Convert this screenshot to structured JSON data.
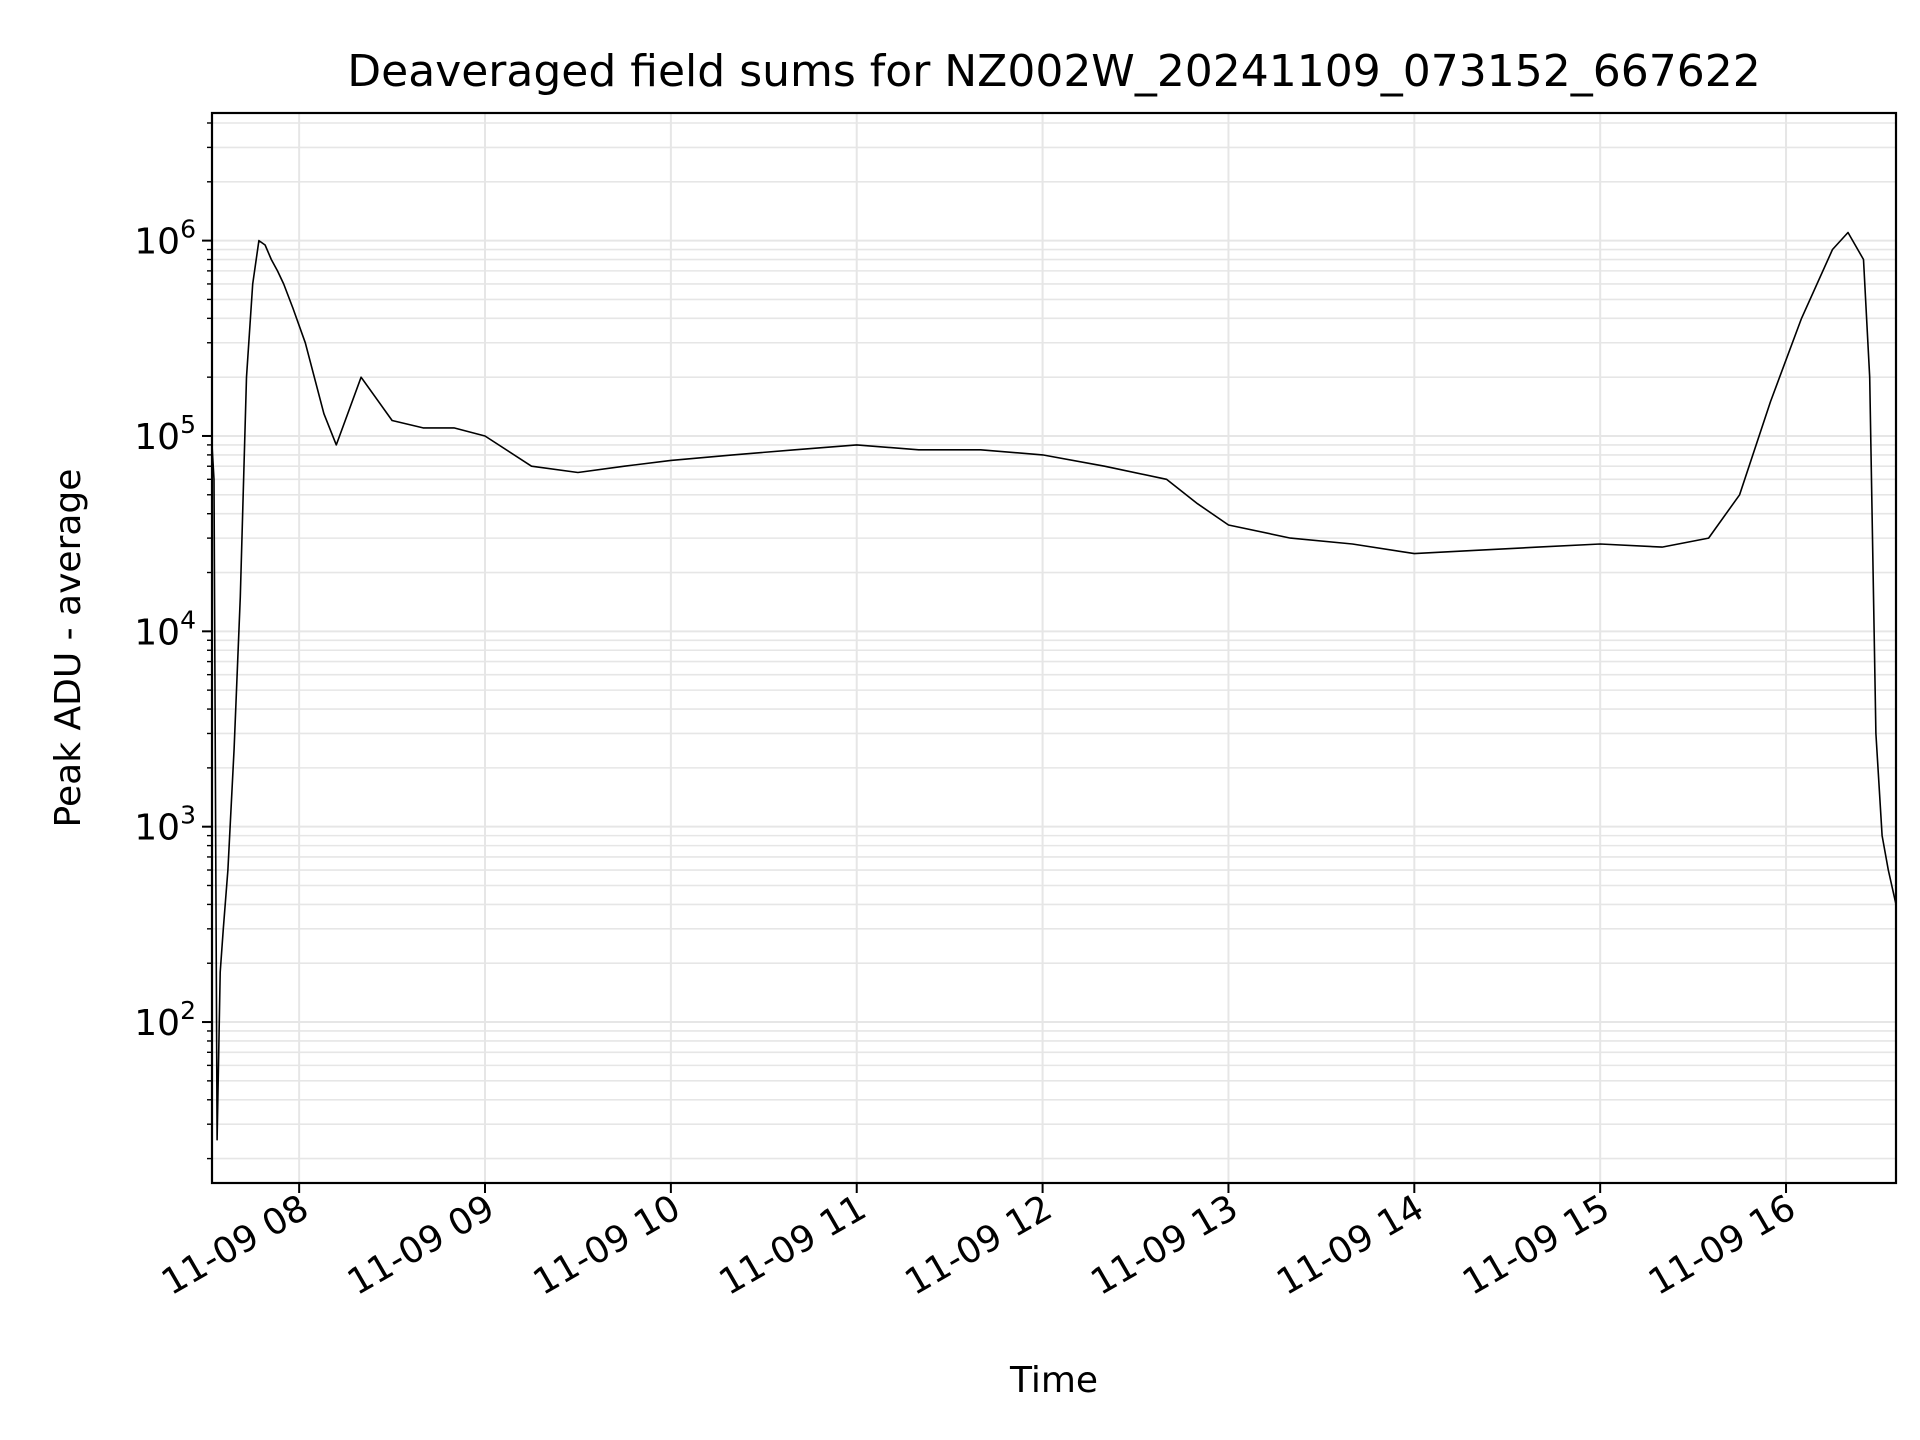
{
  "chart_data": {
    "type": "line",
    "title": "Deaveraged field sums for NZ002W_20241109_073152_667622",
    "xlabel": "Time",
    "ylabel": "Peak ADU - average",
    "yscale": "log",
    "ylim": [
      15,
      4500000
    ],
    "xlim": [
      "2024-11-09 07:31:52",
      "2024-11-09 16:35:30"
    ],
    "x_ticks": [
      {
        "label": "11-09 08",
        "time": "2024-11-09 08:00"
      },
      {
        "label": "11-09 09",
        "time": "2024-11-09 09:00"
      },
      {
        "label": "11-09 10",
        "time": "2024-11-09 10:00"
      },
      {
        "label": "11-09 11",
        "time": "2024-11-09 11:00"
      },
      {
        "label": "11-09 12",
        "time": "2024-11-09 12:00"
      },
      {
        "label": "11-09 13",
        "time": "2024-11-09 13:00"
      },
      {
        "label": "11-09 14",
        "time": "2024-11-09 14:00"
      },
      {
        "label": "11-09 15",
        "time": "2024-11-09 15:00"
      },
      {
        "label": "11-09 16",
        "time": "2024-11-09 16:00"
      }
    ],
    "y_ticks": [
      {
        "base": "10",
        "exp": "2",
        "value": 100
      },
      {
        "base": "10",
        "exp": "3",
        "value": 1000
      },
      {
        "base": "10",
        "exp": "4",
        "value": 10000
      },
      {
        "base": "10",
        "exp": "5",
        "value": 100000
      },
      {
        "base": "10",
        "exp": "6",
        "value": 1000000
      }
    ],
    "grid": true,
    "line_color": "#000000",
    "grid_color": "#e6e6e6",
    "series": [
      {
        "x": [
          "2024-11-09 07:31:52",
          "2024-11-09 07:32:30",
          "2024-11-09 07:33:30",
          "2024-11-09 07:34:30",
          "2024-11-09 07:35:30",
          "2024-11-09 07:37:00",
          "2024-11-09 07:39:00",
          "2024-11-09 07:41:00",
          "2024-11-09 07:43:00",
          "2024-11-09 07:45:00",
          "2024-11-09 07:47:00",
          "2024-11-09 07:49:00",
          "2024-11-09 07:51:00",
          "2024-11-09 07:53:00",
          "2024-11-09 07:55:00",
          "2024-11-09 07:58:00",
          "2024-11-09 08:02:00",
          "2024-11-09 08:08:00",
          "2024-11-09 08:12:00",
          "2024-11-09 08:20:00",
          "2024-11-09 08:30:00",
          "2024-11-09 08:40:00",
          "2024-11-09 08:50:00",
          "2024-11-09 09:00:00",
          "2024-11-09 09:15:00",
          "2024-11-09 09:30:00",
          "2024-11-09 09:45:00",
          "2024-11-09 10:00:00",
          "2024-11-09 10:20:00",
          "2024-11-09 10:40:00",
          "2024-11-09 11:00:00",
          "2024-11-09 11:20:00",
          "2024-11-09 11:40:00",
          "2024-11-09 12:00:00",
          "2024-11-09 12:20:00",
          "2024-11-09 12:40:00",
          "2024-11-09 12:50:00",
          "2024-11-09 13:00:00",
          "2024-11-09 13:20:00",
          "2024-11-09 13:40:00",
          "2024-11-09 14:00:00",
          "2024-11-09 14:20:00",
          "2024-11-09 14:40:00",
          "2024-11-09 15:00:00",
          "2024-11-09 15:20:00",
          "2024-11-09 15:35:00",
          "2024-11-09 15:45:00",
          "2024-11-09 15:55:00",
          "2024-11-09 16:05:00",
          "2024-11-09 16:15:00",
          "2024-11-09 16:20:00",
          "2024-11-09 16:25:00",
          "2024-11-09 16:27:00",
          "2024-11-09 16:29:00",
          "2024-11-09 16:31:00",
          "2024-11-09 16:33:00",
          "2024-11-09 16:35:30"
        ],
        "y": [
          90000,
          60000,
          25,
          180,
          300,
          600,
          2500,
          15000,
          200000,
          600000,
          1000000,
          950000,
          800000,
          700000,
          600000,
          450000,
          300000,
          130000,
          90000,
          200000,
          120000,
          110000,
          110000,
          100000,
          70000,
          65000,
          70000,
          75000,
          80000,
          85000,
          90000,
          85000,
          85000,
          80000,
          70000,
          60000,
          45000,
          35000,
          30000,
          28000,
          25000,
          26000,
          27000,
          28000,
          27000,
          30000,
          50000,
          150000,
          400000,
          900000,
          1100000,
          800000,
          200000,
          3000,
          900,
          600,
          400
        ]
      }
    ]
  }
}
